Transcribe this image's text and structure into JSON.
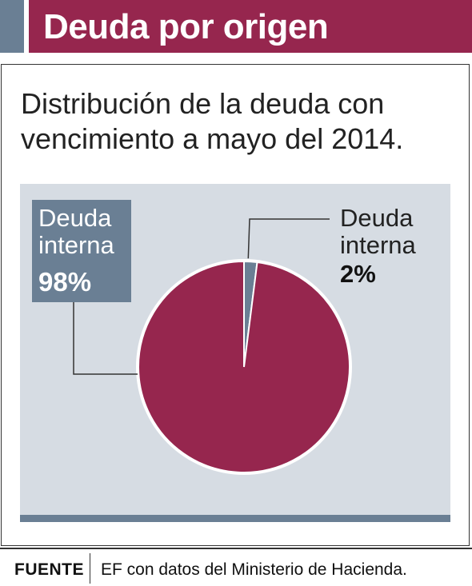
{
  "header": {
    "title": "Deuda por origen",
    "accent_color": "#6a7f94",
    "bar_color": "#96264e"
  },
  "subtitle": "Distribución de la deuda con vencimiento a mayo del 2014.",
  "chart_data": {
    "type": "pie",
    "title": "",
    "slices": [
      {
        "label": "Deuda\ninterna",
        "value": 98,
        "display": "98%",
        "color": "#96264e"
      },
      {
        "label": "Deuda\ninterna",
        "value": 2,
        "display": "2%",
        "color": "#6a7f94"
      }
    ],
    "background_color": "#d6dce3"
  },
  "footer": {
    "source_label": "FUENTE",
    "source_text": "EF con datos del Ministerio de Hacienda."
  }
}
